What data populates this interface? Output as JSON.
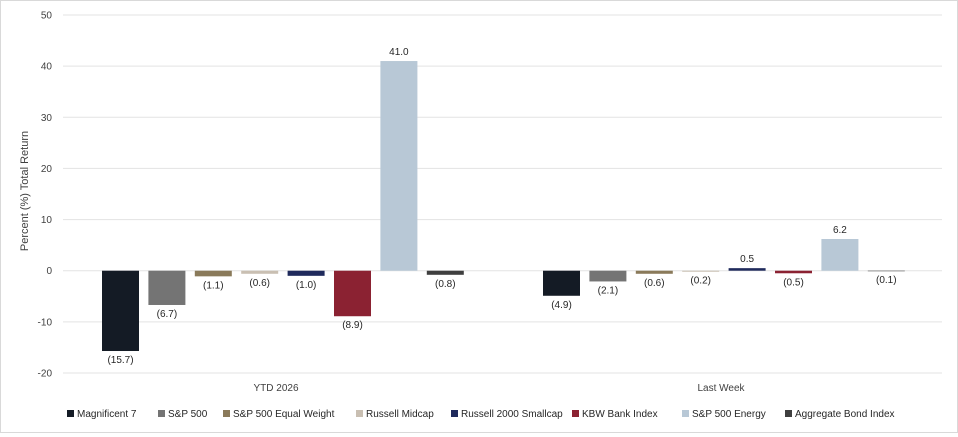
{
  "chart_data": {
    "type": "bar",
    "ylabel": "Percent (%) Total Return",
    "ylim": [
      -20,
      50
    ],
    "yticks": [
      -20,
      -10,
      0,
      10,
      20,
      30,
      40,
      50
    ],
    "grid": true,
    "legend": "bottom",
    "categories": [
      "YTD 2026",
      "Last Week"
    ],
    "series": [
      {
        "name": "Magnificent 7",
        "color": "#141b25",
        "values": [
          -15.7,
          -4.9
        ],
        "labels": [
          "(15.7)",
          "(4.9)"
        ]
      },
      {
        "name": "S&P 500",
        "color": "#747474",
        "values": [
          -6.7,
          -2.1
        ],
        "labels": [
          "(6.7)",
          "(2.1)"
        ]
      },
      {
        "name": "S&P 500 Equal Weight",
        "color": "#8a7a5a",
        "values": [
          -1.1,
          -0.6
        ],
        "labels": [
          "(1.1)",
          "(0.6)"
        ]
      },
      {
        "name": "Russell Midcap",
        "color": "#c9bfb2",
        "values": [
          -0.6,
          -0.2
        ],
        "labels": [
          "(0.6)",
          "(0.2)"
        ]
      },
      {
        "name": "Russell 2000 Smallcap",
        "color": "#1f2a5c",
        "values": [
          -1.0,
          0.5
        ],
        "labels": [
          "(1.0)",
          "0.5"
        ]
      },
      {
        "name": "KBW Bank Index",
        "color": "#8b2232",
        "values": [
          -8.9,
          -0.5
        ],
        "labels": [
          "(8.9)",
          "(0.5)"
        ]
      },
      {
        "name": "S&P 500 Energy",
        "color": "#b8c8d6",
        "values": [
          41.0,
          6.2
        ],
        "labels": [
          "41.0",
          "6.2"
        ]
      },
      {
        "name": "Aggregate Bond Index",
        "color": "#3f3f3f",
        "values": [
          -0.8,
          -0.1
        ],
        "labels": [
          "(0.8)",
          "(0.1)"
        ]
      }
    ]
  }
}
